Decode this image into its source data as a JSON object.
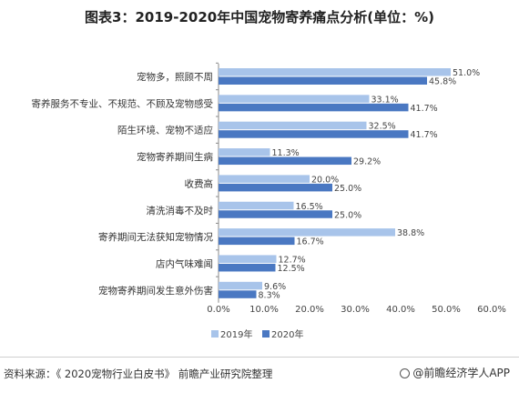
{
  "title": "图表3：2019-2020年中国宠物寄养痛点分析(单位：%)",
  "source": "资料来源：《 2020宠物行业白皮书》 前瞻产业研究院整理",
  "brand": "@前瞻经济学人APP",
  "colors": {
    "series_2019": "#a8c4ea",
    "series_2020": "#4a78c2",
    "axis": "#8a8a8a",
    "text": "#444444"
  },
  "chart_data": {
    "type": "bar",
    "orientation": "horizontal",
    "categories": [
      "宠物多，照顾不周",
      "寄养服务不专业、不规范、不顾及宠物感受",
      "陌生环境、宠物不适应",
      "宠物寄养期间生病",
      "收费高",
      "清洗消毒不及时",
      "寄养期间无法获知宠物情况",
      "店内气味难闻",
      "宠物寄养期间发生意外伤害"
    ],
    "series": [
      {
        "name": "2019年",
        "values": [
          51.0,
          33.1,
          32.5,
          11.3,
          20.0,
          16.5,
          38.8,
          12.7,
          9.6
        ]
      },
      {
        "name": "2020年",
        "values": [
          45.8,
          41.7,
          41.7,
          29.2,
          25.0,
          25.0,
          16.7,
          12.5,
          8.3
        ]
      }
    ],
    "value_labels": [
      [
        "51.0%",
        "33.1%",
        "32.5%",
        "11.3%",
        "20.0%",
        "16.5%",
        "38.8%",
        "12.7%",
        "9.6%"
      ],
      [
        "45.8%",
        "41.7%",
        "41.7%",
        "29.2%",
        "25.0%",
        "25.0%",
        "16.7%",
        "12.5%",
        "8.3%"
      ]
    ],
    "xticks": [
      "0.0%",
      "10.0%",
      "20.0%",
      "30.0%",
      "40.0%",
      "50.0%",
      "60.0%"
    ],
    "xlim": [
      0,
      60
    ],
    "legend": [
      "2019年",
      "2020年"
    ],
    "legend_position": "bottom-center",
    "grid": false
  }
}
